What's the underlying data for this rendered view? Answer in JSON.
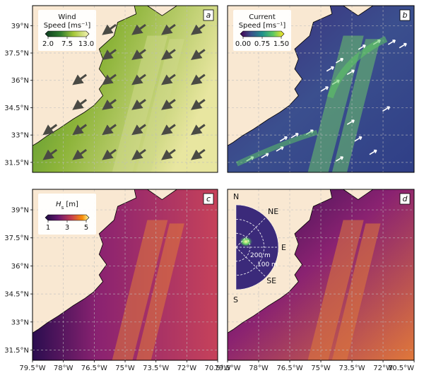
{
  "colors": {
    "land": "#f9e8d2",
    "grid": "#bdbdbd",
    "frame": "#000000",
    "arrow": "#4a4a44",
    "current_arrow": "#ffffff"
  },
  "chart_data": [
    {
      "panel_label": "a",
      "type": "heatmap",
      "colorbar": {
        "title": "Wind Speed [ms⁻¹]",
        "title_line1": "Wind",
        "title_line2": "Speed [ms⁻¹]",
        "ticks": [
          "2.0",
          "7.5",
          "13.0"
        ],
        "range": [
          2.0,
          13.0
        ],
        "colormap": "yellow-green"
      },
      "vectors": "wind direction arrows pointing toward southwest"
    },
    {
      "panel_label": "b",
      "type": "heatmap",
      "colorbar": {
        "title": "Current Speed [ms⁻¹]",
        "title_line1": "Current",
        "title_line2": "Speed [ms⁻¹]",
        "ticks": [
          "0.00",
          "0.75",
          "1.50"
        ],
        "range": [
          0.0,
          1.5
        ],
        "colormap": "viridis"
      },
      "vectors": "current arrows along Gulf Stream toward northeast"
    },
    {
      "panel_label": "c",
      "type": "heatmap",
      "colorbar": {
        "title": "Hs [m]",
        "title_html": "H",
        "title_sub": "s",
        "title_unit": " [m]",
        "ticks": [
          "1",
          "3",
          "5"
        ],
        "range": [
          1,
          5
        ],
        "colormap": "inferno-like"
      }
    },
    {
      "panel_label": "d",
      "type": "heatmap",
      "inset": {
        "type": "polar wave spectrum",
        "directions": [
          "N",
          "NE",
          "E",
          "SE",
          "S"
        ],
        "ring_labels": [
          "200 m",
          "100 m"
        ]
      }
    }
  ],
  "axes": {
    "y_ticks": [
      "39°N",
      "37.5°N",
      "36°N",
      "34.5°N",
      "33°N",
      "31.5°N"
    ],
    "x_ticks": [
      "79.5°W",
      "78°W",
      "76.5°W",
      "75°W",
      "73.5°W",
      "72°W",
      "70.5°W"
    ],
    "x_ticks_right": [
      "79.5°W",
      "78°W",
      "76.5°W",
      "75°W",
      "73.5°W",
      "72°W",
      "70.5°W"
    ]
  }
}
